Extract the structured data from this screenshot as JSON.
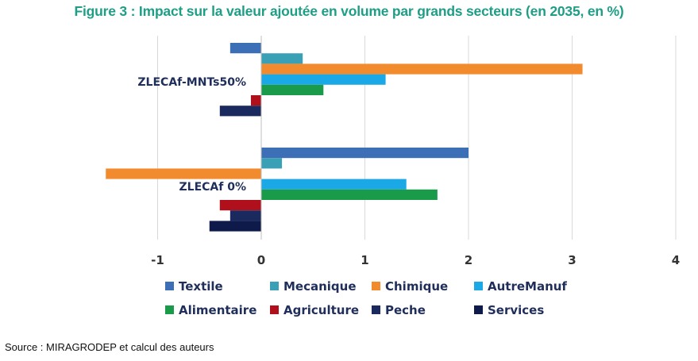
{
  "title": "Figure 3 : Impact sur la valeur ajoutée en volume par grands secteurs (en 2035, en %)",
  "source": "Source : MIRAGRODEP et calcul des auteurs",
  "chart_data": {
    "type": "bar",
    "orientation": "horizontal",
    "title": "Figure 3 : Impact sur la valeur ajoutée en volume par grands secteurs (en 2035, en %)",
    "categories": [
      "ZLECAf-MNTs50%",
      "ZLECAf 0%"
    ],
    "xlim": [
      -1.5,
      4
    ],
    "xticks": [
      -1,
      0,
      1,
      2,
      3,
      4
    ],
    "grid": true,
    "legend_position": "bottom",
    "series": [
      {
        "name": "Textile",
        "color": "#3c6fb6",
        "values": [
          -0.3,
          2.0
        ]
      },
      {
        "name": "Mecanique",
        "color": "#3aa0b6",
        "values": [
          0.4,
          0.2
        ]
      },
      {
        "name": "Chimique",
        "color": "#f28a2e",
        "values": [
          3.1,
          -1.5
        ]
      },
      {
        "name": "AutreManuf",
        "color": "#1aa9e6",
        "values": [
          1.2,
          1.4
        ]
      },
      {
        "name": "Alimentaire",
        "color": "#1a9b4a",
        "values": [
          0.6,
          1.7
        ]
      },
      {
        "name": "Agriculture",
        "color": "#b0101c",
        "values": [
          -0.1,
          -0.4
        ]
      },
      {
        "name": "Peche",
        "color": "#1b2a5e",
        "values": [
          -0.4,
          -0.3
        ]
      },
      {
        "name": "Services",
        "color": "#0d1a4a",
        "values": [
          0.0,
          -0.5
        ]
      }
    ]
  }
}
